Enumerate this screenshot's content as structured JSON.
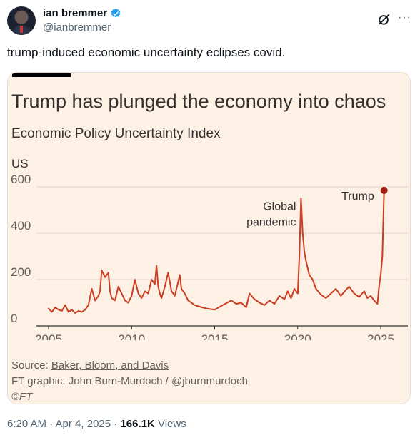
{
  "tweet": {
    "author": {
      "display_name": "ian bremmer",
      "handle": "@ianbremmer",
      "verified": true
    },
    "icons": {
      "grok": "grok-icon",
      "more": "more-horizontal-icon",
      "verified": "verified-badge-icon"
    },
    "text": "trump-induced economic uncertainty eclipses covid.",
    "timestamp": "6:20 AM · Apr 4, 2025 ·",
    "views_count": "166.1K",
    "views_label": "Views"
  },
  "graphic": {
    "title": "Trump has plunged the economy into chaos",
    "subtitle": "Economic Policy Uncertainty Index",
    "unit": "US",
    "source_prefix": "Source:",
    "source_link": "Baker, Bloom, and Davis",
    "credit": "FT graphic: John Burn-Murdoch / @jburnmurdoch",
    "copyright": "©FT",
    "colors": {
      "background": "#fdf0e5",
      "line": "#cc3e21",
      "marker": "#9e1c10",
      "axis_text": "#66605c"
    }
  },
  "chart_data": {
    "type": "line",
    "title": "Trump has plunged the economy into chaos",
    "subtitle": "Economic Policy Uncertainty Index",
    "ylabel": "US",
    "xlim": [
      2005,
      2025.3
    ],
    "ylim": [
      0,
      600
    ],
    "x_ticks": [
      2005,
      2010,
      2015,
      2020,
      2025
    ],
    "x_tick_labels": [
      "2005",
      "2010",
      "2015",
      "2020",
      "2025"
    ],
    "y_ticks": [
      0,
      200,
      400,
      600
    ],
    "y_tick_labels": [
      "0",
      "200",
      "400",
      "600"
    ],
    "grid": "horizontal",
    "annotations": [
      {
        "lines": [
          "Global",
          "pandemic"
        ],
        "x": 2019.9,
        "y": 500
      },
      {
        "lines": [
          "Trump"
        ],
        "x": 2024.6,
        "y": 545
      }
    ],
    "series": [
      {
        "x": [
          2005.0,
          2005.2,
          2005.4,
          2005.6,
          2005.8,
          2006.0,
          2006.2,
          2006.4,
          2006.6,
          2006.8,
          2007.0,
          2007.2,
          2007.4,
          2007.6,
          2007.8,
          2008.0,
          2008.1,
          2008.2,
          2008.4,
          2008.6,
          2008.7,
          2008.8,
          2009.0,
          2009.2,
          2009.4,
          2009.6,
          2009.8,
          2010.0,
          2010.2,
          2010.4,
          2010.6,
          2010.8,
          2011.0,
          2011.2,
          2011.4,
          2011.5,
          2011.6,
          2011.7,
          2011.8,
          2012.0,
          2012.2,
          2012.4,
          2012.6,
          2012.8,
          2012.9,
          2013.0,
          2013.2,
          2013.4,
          2013.6,
          2013.8,
          2014.0,
          2014.5,
          2015.0,
          2015.5,
          2016.0,
          2016.3,
          2016.6,
          2016.9,
          2017.1,
          2017.4,
          2017.7,
          2018.0,
          2018.3,
          2018.6,
          2018.9,
          2019.2,
          2019.4,
          2019.6,
          2019.8,
          2020.0,
          2020.1,
          2020.2,
          2020.3,
          2020.4,
          2020.5,
          2020.7,
          2020.9,
          2021.1,
          2021.4,
          2021.7,
          2022.0,
          2022.3,
          2022.6,
          2022.9,
          2023.1,
          2023.4,
          2023.7,
          2024.0,
          2024.2,
          2024.4,
          2024.6,
          2024.8,
          2024.9,
          2025.0,
          2025.1,
          2025.2
        ],
        "y": [
          75,
          60,
          80,
          70,
          65,
          90,
          60,
          70,
          55,
          65,
          60,
          70,
          90,
          160,
          110,
          130,
          150,
          240,
          210,
          230,
          150,
          120,
          110,
          170,
          140,
          110,
          100,
          130,
          200,
          140,
          120,
          150,
          140,
          200,
          180,
          260,
          170,
          140,
          120,
          170,
          230,
          150,
          130,
          190,
          220,
          160,
          140,
          110,
          100,
          90,
          85,
          75,
          70,
          90,
          110,
          95,
          100,
          80,
          140,
          115,
          100,
          90,
          110,
          95,
          130,
          115,
          150,
          120,
          160,
          140,
          300,
          550,
          400,
          320,
          280,
          220,
          200,
          160,
          135,
          120,
          140,
          160,
          130,
          155,
          170,
          140,
          125,
          150,
          120,
          130,
          110,
          95,
          170,
          220,
          300,
          585
        ]
      }
    ]
  }
}
